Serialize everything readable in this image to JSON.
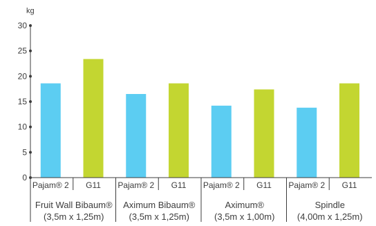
{
  "chart_data": {
    "type": "bar",
    "ylabel": "kg",
    "ylim": [
      0,
      30
    ],
    "yticks": [
      0,
      5,
      10,
      15,
      20,
      25,
      30
    ],
    "grid": false,
    "colors": {
      "Pajam® 2": "#5ccdf2",
      "G11": "#c3d631",
      "axis": "#3c3c3c"
    },
    "groups": [
      {
        "label_line1": "Fruit Wall Bibaum®",
        "label_line2": "(3,5m x 1,25m)",
        "bars": [
          {
            "category": "Pajam® 2",
            "value": 18.6
          },
          {
            "category": "G11",
            "value": 23.4
          }
        ]
      },
      {
        "label_line1": "Aximum Bibaum®",
        "label_line2": "(3,5m x 1,25m)",
        "bars": [
          {
            "category": "Pajam® 2",
            "value": 16.5
          },
          {
            "category": "G11",
            "value": 18.6
          }
        ]
      },
      {
        "label_line1": "Aximum®",
        "label_line2": "(3,5m x 1,00m)",
        "bars": [
          {
            "category": "Pajam® 2",
            "value": 14.2
          },
          {
            "category": "G11",
            "value": 17.4
          }
        ]
      },
      {
        "label_line1": "Spindle",
        "label_line2": "(4,00m x 1,25m)",
        "bars": [
          {
            "category": "Pajam® 2",
            "value": 13.8
          },
          {
            "category": "G11",
            "value": 18.6
          }
        ]
      }
    ]
  }
}
